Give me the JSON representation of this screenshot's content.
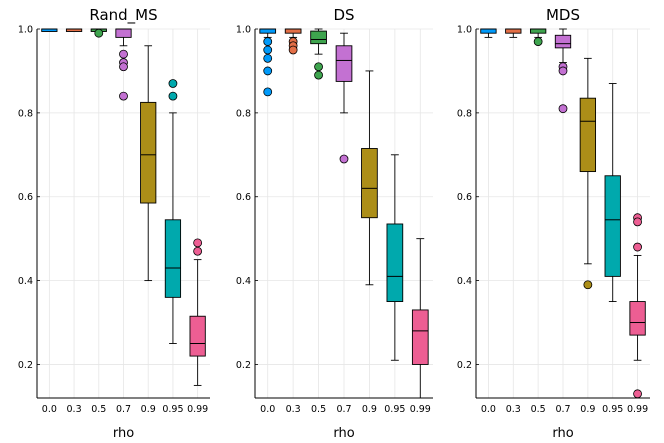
{
  "chart_data": [
    {
      "type": "box",
      "title": "Rand_MS",
      "xlabel": "rho",
      "categories": [
        "0.0",
        "0.3",
        "0.5",
        "0.7",
        "0.9",
        "0.95",
        "0.99"
      ],
      "ylim": [
        0.12,
        1.0
      ],
      "yticks": [
        "0.2",
        "0.4",
        "0.6",
        "0.8",
        "1.0"
      ],
      "colors": [
        "#009AFA",
        "#E36F47",
        "#3EA44E",
        "#C371D2",
        "#AC8E18",
        "#00A9AD",
        "#ED5E93"
      ],
      "boxes": [
        {
          "q1": 1.0,
          "median": 1.0,
          "q3": 1.0,
          "low": 1.0,
          "high": 1.0,
          "outliers": []
        },
        {
          "q1": 1.0,
          "median": 1.0,
          "q3": 1.0,
          "low": 1.0,
          "high": 1.0,
          "outliers": []
        },
        {
          "q1": 1.0,
          "median": 1.0,
          "q3": 1.0,
          "low": 1.0,
          "high": 1.0,
          "outliers": [
            0.99
          ]
        },
        {
          "q1": 0.98,
          "median": 1.0,
          "q3": 1.0,
          "low": 0.96,
          "high": 1.0,
          "outliers": [
            0.94,
            0.92,
            0.91,
            0.84
          ]
        },
        {
          "q1": 0.585,
          "median": 0.7,
          "q3": 0.825,
          "low": 0.4,
          "high": 0.96,
          "outliers": []
        },
        {
          "q1": 0.36,
          "median": 0.43,
          "q3": 0.545,
          "low": 0.25,
          "high": 0.8,
          "outliers": [
            0.87,
            0.84
          ]
        },
        {
          "q1": 0.22,
          "median": 0.25,
          "q3": 0.315,
          "low": 0.15,
          "high": 0.45,
          "outliers": [
            0.49,
            0.47
          ]
        }
      ]
    },
    {
      "type": "box",
      "title": "DS",
      "xlabel": "rho",
      "categories": [
        "0.0",
        "0.3",
        "0.5",
        "0.7",
        "0.9",
        "0.95",
        "0.99"
      ],
      "ylim": [
        0.12,
        1.0
      ],
      "yticks": [
        "0.2",
        "0.4",
        "0.6",
        "0.8",
        "1.0"
      ],
      "colors": [
        "#009AFA",
        "#E36F47",
        "#3EA44E",
        "#C371D2",
        "#AC8E18",
        "#00A9AD",
        "#ED5E93"
      ],
      "boxes": [
        {
          "q1": 0.99,
          "median": 1.0,
          "q3": 1.0,
          "low": 0.98,
          "high": 1.0,
          "outliers": [
            0.97,
            0.95,
            0.93,
            0.9,
            0.85
          ]
        },
        {
          "q1": 0.99,
          "median": 1.0,
          "q3": 1.0,
          "low": 0.98,
          "high": 1.0,
          "outliers": [
            0.97,
            0.96,
            0.95
          ]
        },
        {
          "q1": 0.965,
          "median": 0.975,
          "q3": 0.995,
          "low": 0.94,
          "high": 1.0,
          "outliers": [
            0.91,
            0.89
          ]
        },
        {
          "q1": 0.875,
          "median": 0.925,
          "q3": 0.96,
          "low": 0.8,
          "high": 0.99,
          "outliers": [
            0.69
          ]
        },
        {
          "q1": 0.55,
          "median": 0.62,
          "q3": 0.715,
          "low": 0.39,
          "high": 0.9,
          "outliers": []
        },
        {
          "q1": 0.35,
          "median": 0.41,
          "q3": 0.535,
          "low": 0.21,
          "high": 0.7,
          "outliers": []
        },
        {
          "q1": 0.2,
          "median": 0.28,
          "q3": 0.33,
          "low": 0.12,
          "high": 0.5,
          "outliers": []
        }
      ]
    },
    {
      "type": "box",
      "title": "MDS",
      "xlabel": "rho",
      "categories": [
        "0.0",
        "0.3",
        "0.5",
        "0.7",
        "0.9",
        "0.95",
        "0.99"
      ],
      "ylim": [
        0.12,
        1.0
      ],
      "yticks": [
        "0.2",
        "0.4",
        "0.6",
        "0.8",
        "1.0"
      ],
      "colors": [
        "#009AFA",
        "#E36F47",
        "#3EA44E",
        "#C371D2",
        "#AC8E18",
        "#00A9AD",
        "#ED5E93"
      ],
      "boxes": [
        {
          "q1": 0.99,
          "median": 1.0,
          "q3": 1.0,
          "low": 0.98,
          "high": 1.0,
          "outliers": []
        },
        {
          "q1": 0.99,
          "median": 1.0,
          "q3": 1.0,
          "low": 0.98,
          "high": 1.0,
          "outliers": []
        },
        {
          "q1": 0.99,
          "median": 1.0,
          "q3": 1.0,
          "low": 0.98,
          "high": 1.0,
          "outliers": [
            0.97
          ]
        },
        {
          "q1": 0.955,
          "median": 0.965,
          "q3": 0.985,
          "low": 0.92,
          "high": 1.0,
          "outliers": [
            0.91,
            0.9,
            0.81
          ]
        },
        {
          "q1": 0.66,
          "median": 0.78,
          "q3": 0.835,
          "low": 0.44,
          "high": 0.93,
          "outliers": [
            0.39
          ]
        },
        {
          "q1": 0.41,
          "median": 0.545,
          "q3": 0.65,
          "low": 0.35,
          "high": 0.87,
          "outliers": []
        },
        {
          "q1": 0.27,
          "median": 0.3,
          "q3": 0.35,
          "low": 0.21,
          "high": 0.46,
          "outliers": [
            0.55,
            0.54,
            0.48,
            0.13
          ]
        }
      ]
    }
  ]
}
